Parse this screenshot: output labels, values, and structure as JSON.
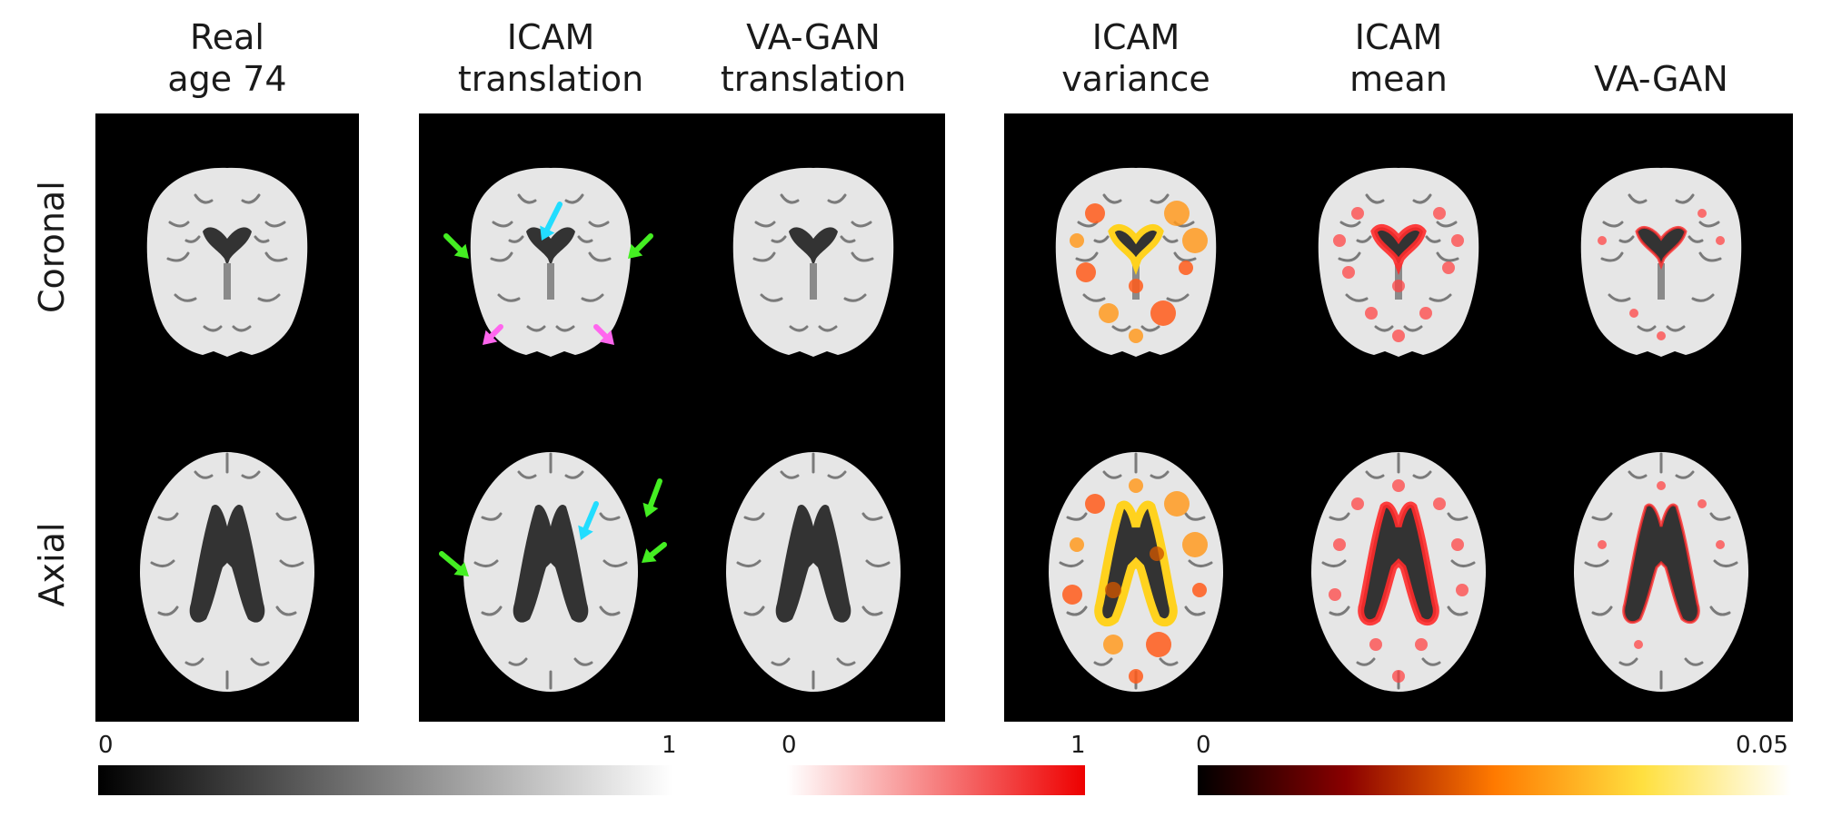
{
  "columns": [
    {
      "title": "Real\nage 74",
      "overlay": "none"
    },
    {
      "title": "ICAM\ntranslation",
      "overlay": "none"
    },
    {
      "title": "VA-GAN\ntranslation",
      "overlay": "none"
    },
    {
      "title": "ICAM\nvariance",
      "overlay": "hot"
    },
    {
      "title": "ICAM\nmean",
      "overlay": "red"
    },
    {
      "title": "VA-GAN",
      "overlay": "red-sparse"
    }
  ],
  "rows": [
    {
      "label": "Coronal",
      "view": "coronal"
    },
    {
      "label": "Axial",
      "view": "axial"
    }
  ],
  "arrows": {
    "colors": {
      "green": "#44ee22",
      "cyan": "#22ddff",
      "magenta": "#ff66ee"
    }
  },
  "colorbars": [
    {
      "name": "grayscale",
      "min_label": "0",
      "max_label": "1",
      "colors": [
        "#000000",
        "#ffffff"
      ]
    },
    {
      "name": "red",
      "min_label": "0",
      "max_label": "1",
      "colors": [
        "#ffffff",
        "#ee0000"
      ]
    },
    {
      "name": "hot",
      "min_label": "0",
      "max_label": "0.05",
      "colors": [
        "#000000",
        "#8a0000",
        "#ff7a00",
        "#ffe040",
        "#ffffff"
      ]
    }
  ]
}
